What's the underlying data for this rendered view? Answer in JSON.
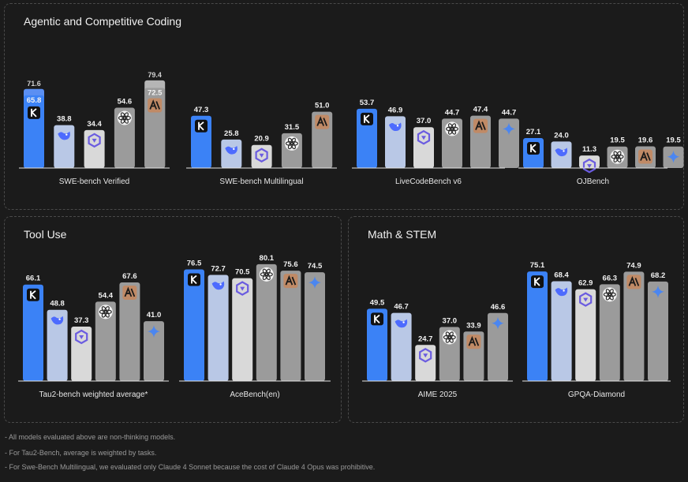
{
  "panels": [
    {
      "title": "Agentic and Competitive Coding"
    },
    {
      "title": "Tool Use"
    },
    {
      "title": "Math & STEM"
    }
  ],
  "colors": {
    "kimi": "#3b82f6",
    "deepseek": "#b9c8e6",
    "qwen": "#d9d9d9",
    "gpt": "#9b9b9b",
    "claude": "#9b9b9b",
    "gemini": "#9b9b9b",
    "claude_icon_bg": "#c08a66",
    "gemini_star": "#4b86f0"
  },
  "chart_data": [
    {
      "type": "bar",
      "xlabel": "SWE-bench Verified",
      "models": [
        "kimi",
        "deepseek",
        "qwen",
        "gpt",
        "claude"
      ],
      "values": [
        65.8,
        38.8,
        34.4,
        54.6,
        72.5
      ],
      "secondary": {
        "0": 71.6,
        "4": 79.4
      }
    },
    {
      "type": "bar",
      "xlabel": "SWE-bench Multilingual",
      "models": [
        "kimi",
        "deepseek",
        "qwen",
        "gpt",
        "claude"
      ],
      "values": [
        47.3,
        25.8,
        20.9,
        31.5,
        51.0
      ]
    },
    {
      "type": "bar",
      "xlabel": "LiveCodeBench v6",
      "models": [
        "kimi",
        "deepseek",
        "qwen",
        "gpt",
        "claude",
        "gemini"
      ],
      "values": [
        53.7,
        46.9,
        37.0,
        44.7,
        47.4,
        44.7
      ]
    },
    {
      "type": "bar",
      "xlabel": "OJBench",
      "models": [
        "kimi",
        "deepseek",
        "qwen",
        "gpt",
        "claude",
        "gemini"
      ],
      "values": [
        27.1,
        24.0,
        11.3,
        19.5,
        19.6,
        19.5
      ]
    },
    {
      "type": "bar",
      "xlabel": "Tau2-bench weighted average*",
      "models": [
        "kimi",
        "deepseek",
        "qwen",
        "gpt",
        "claude",
        "gemini"
      ],
      "values": [
        66.1,
        48.8,
        37.3,
        54.4,
        67.6,
        41.0
      ]
    },
    {
      "type": "bar",
      "xlabel": "AceBench(en)",
      "models": [
        "kimi",
        "deepseek",
        "qwen",
        "gpt",
        "claude",
        "gemini"
      ],
      "values": [
        76.5,
        72.7,
        70.5,
        80.1,
        75.6,
        74.5
      ]
    },
    {
      "type": "bar",
      "xlabel": "AIME 2025",
      "models": [
        "kimi",
        "deepseek",
        "qwen",
        "gpt",
        "claude",
        "gemini"
      ],
      "values": [
        49.5,
        46.7,
        24.7,
        37.0,
        33.9,
        46.6
      ]
    },
    {
      "type": "bar",
      "xlabel": "GPQA-Diamond",
      "models": [
        "kimi",
        "deepseek",
        "qwen",
        "gpt",
        "claude",
        "gemini"
      ],
      "values": [
        75.1,
        68.4,
        62.9,
        66.3,
        74.9,
        68.2
      ]
    }
  ],
  "footnotes": [
    "- All models evaluated above are non-thinking models.",
    "- For Tau2-Bench, average is weighted by tasks.",
    "- For Swe-Bench Multilingual, we evaluated only Claude 4 Sonnet because the cost of Claude 4 Opus was prohibitive."
  ]
}
